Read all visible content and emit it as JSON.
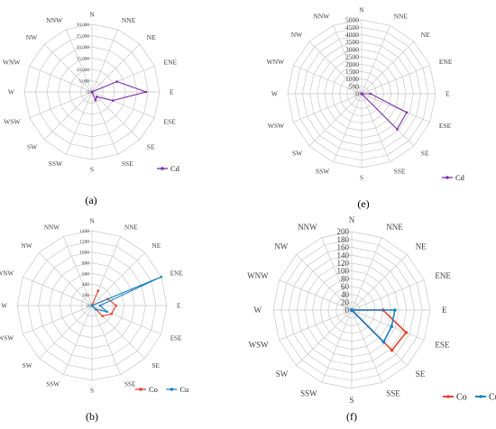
{
  "directions": [
    "N",
    "NNE",
    "NE",
    "ENE",
    "E",
    "ESE",
    "SE",
    "SSE",
    "S",
    "SSW",
    "SW",
    "WSW",
    "W",
    "WNW",
    "NW",
    "NNW"
  ],
  "colors": {
    "Cd": "#7b2fa6",
    "Co": "#e8412c",
    "Cu": "#1a7fc1",
    "grid": "#c8c8c8"
  },
  "chart_data": [
    {
      "type": "radar",
      "panel_label": "(a)",
      "ylim": [
        0,
        30000
      ],
      "ticks": [
        "0",
        "5,000",
        "10,000",
        "15,000",
        "20,000",
        "25,000",
        "30,000"
      ],
      "series": [
        {
          "name": "Cd",
          "values": [
            0,
            0,
            0,
            12000,
            24000,
            10000,
            3000,
            4000,
            0,
            0,
            0,
            0,
            0,
            0,
            0,
            0
          ]
        }
      ]
    },
    {
      "type": "radar",
      "panel_label": "(e)",
      "ylim": [
        0,
        5000
      ],
      "ticks": [
        "0",
        "500",
        "1000",
        "1500",
        "2000",
        "2500",
        "3000",
        "3500",
        "4000",
        "4500",
        "5000"
      ],
      "series": [
        {
          "name": "Cd",
          "values": [
            0,
            0,
            0,
            0,
            600,
            3300,
            3400,
            0,
            0,
            0,
            0,
            0,
            0,
            0,
            0,
            0
          ]
        }
      ]
    },
    {
      "type": "radar",
      "panel_label": "(b)",
      "ylim": [
        0,
        1400
      ],
      "ticks": [
        "0",
        "200",
        "400",
        "600",
        "800",
        "1000",
        "1200",
        "1400"
      ],
      "series": [
        {
          "name": "Co",
          "values": [
            0,
            300,
            0,
            320,
            450,
            400,
            280,
            0,
            0,
            0,
            0,
            0,
            0,
            0,
            0,
            0
          ]
        },
        {
          "name": "Cu",
          "values": [
            0,
            0,
            0,
            1400,
            150,
            300,
            100,
            0,
            0,
            0,
            0,
            0,
            0,
            0,
            0,
            0
          ]
        }
      ]
    },
    {
      "type": "radar",
      "panel_label": "(f)",
      "ylim": [
        0,
        200
      ],
      "ticks": [
        "0",
        "20",
        "40",
        "60",
        "80",
        "100",
        "120",
        "140",
        "160",
        "180",
        "200"
      ],
      "series": [
        {
          "name": "Co",
          "values": [
            0,
            0,
            0,
            0,
            80,
            150,
            145,
            0,
            0,
            0,
            0,
            0,
            0,
            0,
            0,
            0
          ]
        },
        {
          "name": "Cu",
          "values": [
            0,
            0,
            0,
            0,
            110,
            110,
            115,
            0,
            0,
            0,
            0,
            0,
            0,
            0,
            0,
            0
          ]
        }
      ]
    }
  ]
}
